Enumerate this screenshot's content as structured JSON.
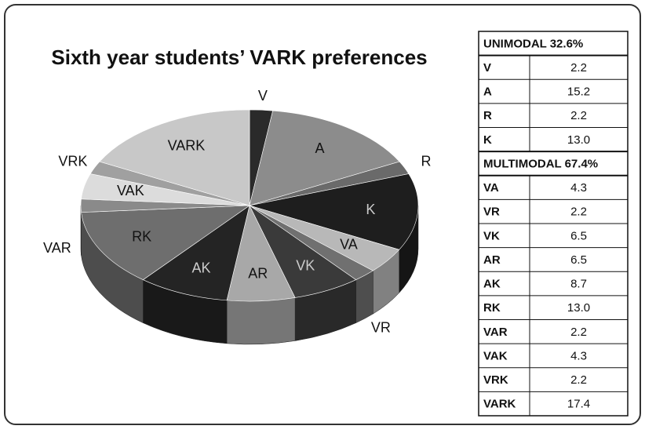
{
  "chart_data": {
    "type": "pie",
    "title": "Sixth year students’ VARK preferences",
    "groups": [
      {
        "header": "UNIMODAL 32.6%",
        "categories": [
          "V",
          "A",
          "R",
          "K"
        ],
        "values": [
          2.2,
          15.2,
          2.2,
          13.0
        ],
        "value_labels": [
          "2.2",
          "15.2",
          "2.2",
          "13.0"
        ],
        "colors": [
          "#2a2a2a",
          "#8c8c8c",
          "#6a6a6a",
          "#1e1e1e"
        ]
      },
      {
        "header": "MULTIMODAL 67.4%",
        "categories": [
          "VA",
          "VR",
          "VK",
          "AR",
          "AK",
          "RK",
          "VAR",
          "VAK",
          "VRK",
          "VARK"
        ],
        "values": [
          4.3,
          2.2,
          6.5,
          6.5,
          8.7,
          13.0,
          2.2,
          4.3,
          2.2,
          17.4
        ],
        "value_labels": [
          "4.3",
          "2.2",
          "6.5",
          "6.5",
          "8.7",
          "13.0",
          "2.2",
          "4.3",
          "2.2",
          "17.4"
        ],
        "colors": [
          "#b8b8b8",
          "#707070",
          "#3a3a3a",
          "#a8a8a8",
          "#242424",
          "#6e6e6e",
          "#8a8a8a",
          "#dcdcdc",
          "#a0a0a0",
          "#c8c8c8"
        ]
      }
    ]
  }
}
